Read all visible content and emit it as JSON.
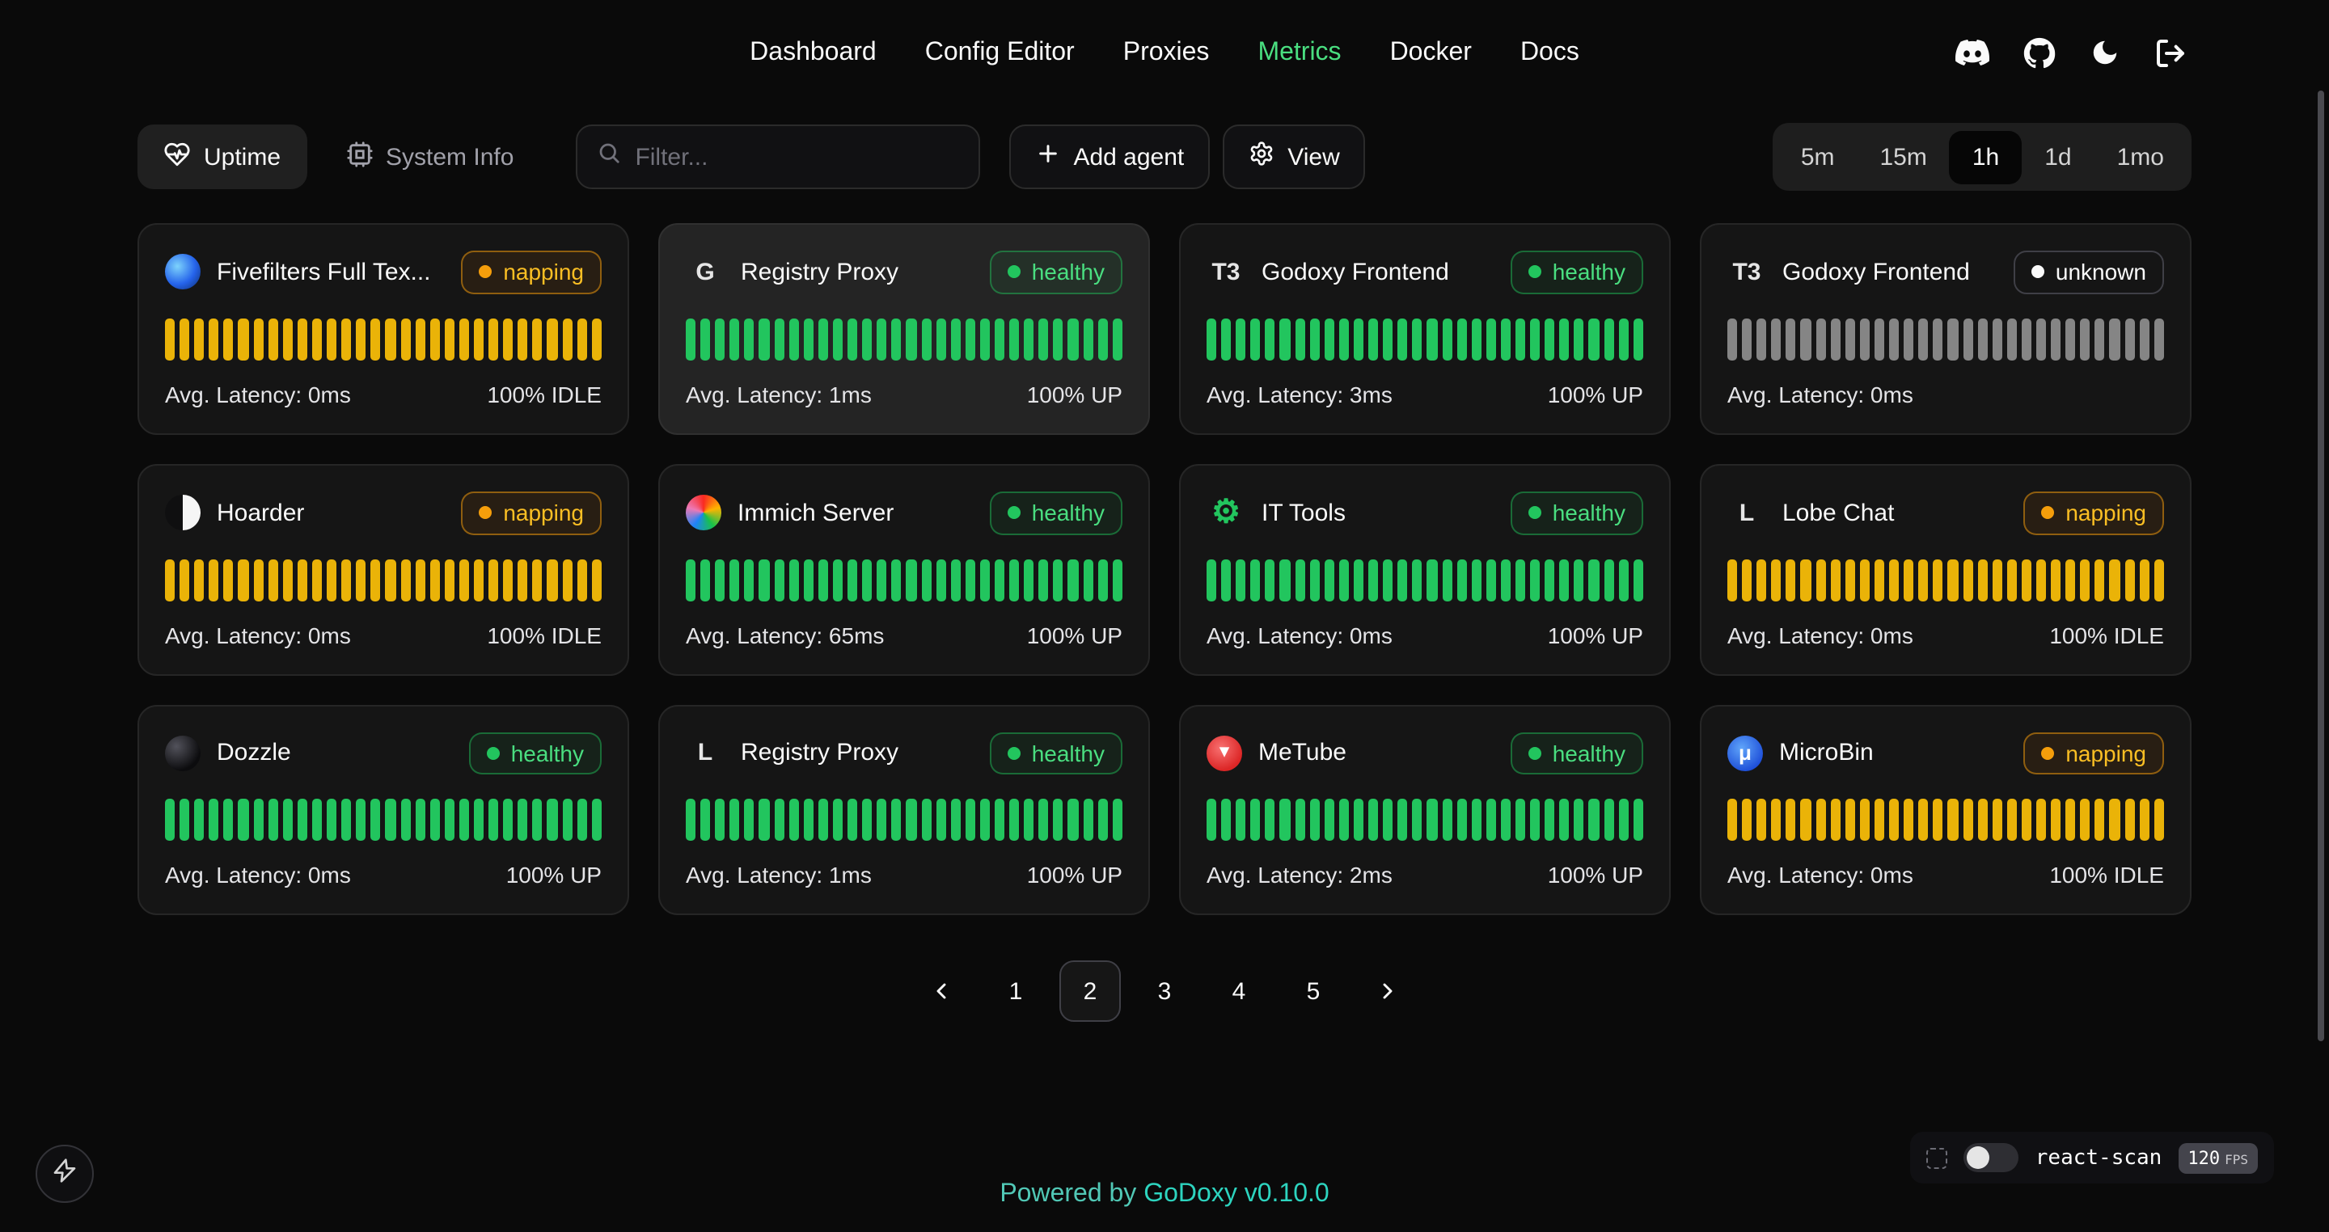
{
  "nav": {
    "items": [
      {
        "label": "Dashboard"
      },
      {
        "label": "Config Editor"
      },
      {
        "label": "Proxies"
      },
      {
        "label": "Metrics"
      },
      {
        "label": "Docker"
      },
      {
        "label": "Docs"
      }
    ],
    "active": "Metrics"
  },
  "toolbar": {
    "uptime_label": "Uptime",
    "system_info_label": "System Info",
    "filter_placeholder": "Filter...",
    "add_agent_label": "Add agent",
    "view_label": "View",
    "time_ranges": [
      "5m",
      "15m",
      "1h",
      "1d",
      "1mo"
    ],
    "active_time_range": "1h"
  },
  "bars_per_card": 30,
  "cards": [
    {
      "title": "Fivefilters Full Tex...",
      "status": "napping",
      "latency": "Avg. Latency: 0ms",
      "uptime": "100% IDLE",
      "bar_color": "yellow",
      "highlighted": false,
      "icon": {
        "name": "fivefilters-icon",
        "style": "circle",
        "glyph": "",
        "bg": "radial-gradient(circle at 35% 35%, #7dd3fc, #2563eb 55%, #0c2d6b)",
        "color": ""
      }
    },
    {
      "title": "Registry Proxy",
      "status": "healthy",
      "latency": "Avg. Latency: 1ms",
      "uptime": "100% UP",
      "bar_color": "green",
      "highlighted": true,
      "icon": {
        "name": "registry-proxy-icon",
        "style": "letter",
        "glyph": "G",
        "bg": "",
        "color": "#e5e5e5"
      }
    },
    {
      "title": "Godoxy Frontend",
      "status": "healthy",
      "latency": "Avg. Latency: 3ms",
      "uptime": "100% UP",
      "bar_color": "green",
      "highlighted": false,
      "icon": {
        "name": "godoxy-frontend-icon",
        "style": "letter",
        "glyph": "T3",
        "bg": "",
        "color": "#e5e5e5"
      }
    },
    {
      "title": "Godoxy Frontend",
      "status": "unknown",
      "latency": "Avg. Latency: 0ms",
      "uptime": "",
      "bar_color": "gray",
      "highlighted": false,
      "icon": {
        "name": "godoxy-frontend-icon",
        "style": "letter",
        "glyph": "T3",
        "bg": "",
        "color": "#e5e5e5"
      }
    },
    {
      "title": "Hoarder",
      "status": "napping",
      "latency": "Avg. Latency: 0ms",
      "uptime": "100% IDLE",
      "bar_color": "yellow",
      "highlighted": false,
      "icon": {
        "name": "hoarder-icon",
        "style": "circle",
        "glyph": "",
        "bg": "linear-gradient(90deg, #0f0f10 50%, #f5f5f5 50%)",
        "color": ""
      }
    },
    {
      "title": "Immich Server",
      "status": "healthy",
      "latency": "Avg. Latency: 65ms",
      "uptime": "100% UP",
      "bar_color": "green",
      "highlighted": false,
      "icon": {
        "name": "immich-icon",
        "style": "circle",
        "glyph": "",
        "bg": "conic-gradient(from 0deg, #fa2921, #ffb400, #18c249, #1e83f7, #ed79b5, #fa2921)",
        "color": ""
      }
    },
    {
      "title": "IT Tools",
      "status": "healthy",
      "latency": "Avg. Latency: 0ms",
      "uptime": "100% UP",
      "bar_color": "green",
      "highlighted": false,
      "icon": {
        "name": "it-tools-icon",
        "style": "letter",
        "glyph": "⚙",
        "bg": "",
        "color": "#22c55e",
        "font_size": "20px"
      }
    },
    {
      "title": "Lobe Chat",
      "status": "napping",
      "latency": "Avg. Latency: 0ms",
      "uptime": "100% IDLE",
      "bar_color": "yellow",
      "highlighted": false,
      "icon": {
        "name": "lobe-chat-icon",
        "style": "letter",
        "glyph": "L",
        "bg": "",
        "color": "#e5e5e5"
      }
    },
    {
      "title": "Dozzle",
      "status": "healthy",
      "latency": "Avg. Latency: 0ms",
      "uptime": "100% UP",
      "bar_color": "green",
      "highlighted": false,
      "icon": {
        "name": "dozzle-icon",
        "style": "circle",
        "glyph": "",
        "bg": "radial-gradient(circle at 32% 30%, #52525b, #0c0c0e 70%)",
        "color": ""
      }
    },
    {
      "title": "Registry Proxy",
      "status": "healthy",
      "latency": "Avg. Latency: 1ms",
      "uptime": "100% UP",
      "bar_color": "green",
      "highlighted": false,
      "icon": {
        "name": "registry-proxy-icon",
        "style": "letter",
        "glyph": "L",
        "bg": "",
        "color": "#e5e5e5"
      }
    },
    {
      "title": "MeTube",
      "status": "healthy",
      "latency": "Avg. Latency: 2ms",
      "uptime": "100% UP",
      "bar_color": "green",
      "highlighted": false,
      "icon": {
        "name": "metube-icon",
        "style": "circle",
        "glyph": "▾",
        "bg": "radial-gradient(circle at 40% 35%, #f87171, #dc2626 70%)",
        "color": "#ffffff",
        "font_size": "11px"
      }
    },
    {
      "title": "MicroBin",
      "status": "napping",
      "latency": "Avg. Latency: 0ms",
      "uptime": "100% IDLE",
      "bar_color": "yellow",
      "highlighted": false,
      "icon": {
        "name": "microbin-icon",
        "style": "circle",
        "glyph": "μ",
        "bg": "radial-gradient(circle at 40% 35%, #60a5fa, #1d4ed8 75%)",
        "color": "#ffffff",
        "font_size": "13px"
      }
    }
  ],
  "pagination": {
    "pages": [
      "1",
      "2",
      "3",
      "4",
      "5"
    ],
    "active_page": "2"
  },
  "footer": {
    "powered_by": "Powered by",
    "brand": "GoDoxy",
    "version": "v0.10.0"
  },
  "react_scan": {
    "label": "react-scan",
    "fps": "120",
    "fps_unit": "FPS"
  },
  "colors": {
    "accent": "#4ade80",
    "healthy": "#22c55e",
    "napping": "#f59e0b",
    "unknown": "#fafafa",
    "bar_green": "#22c55e",
    "bar_yellow": "#eab308",
    "bar_gray": "#858585",
    "brand_teal": "#2dd4bf"
  }
}
